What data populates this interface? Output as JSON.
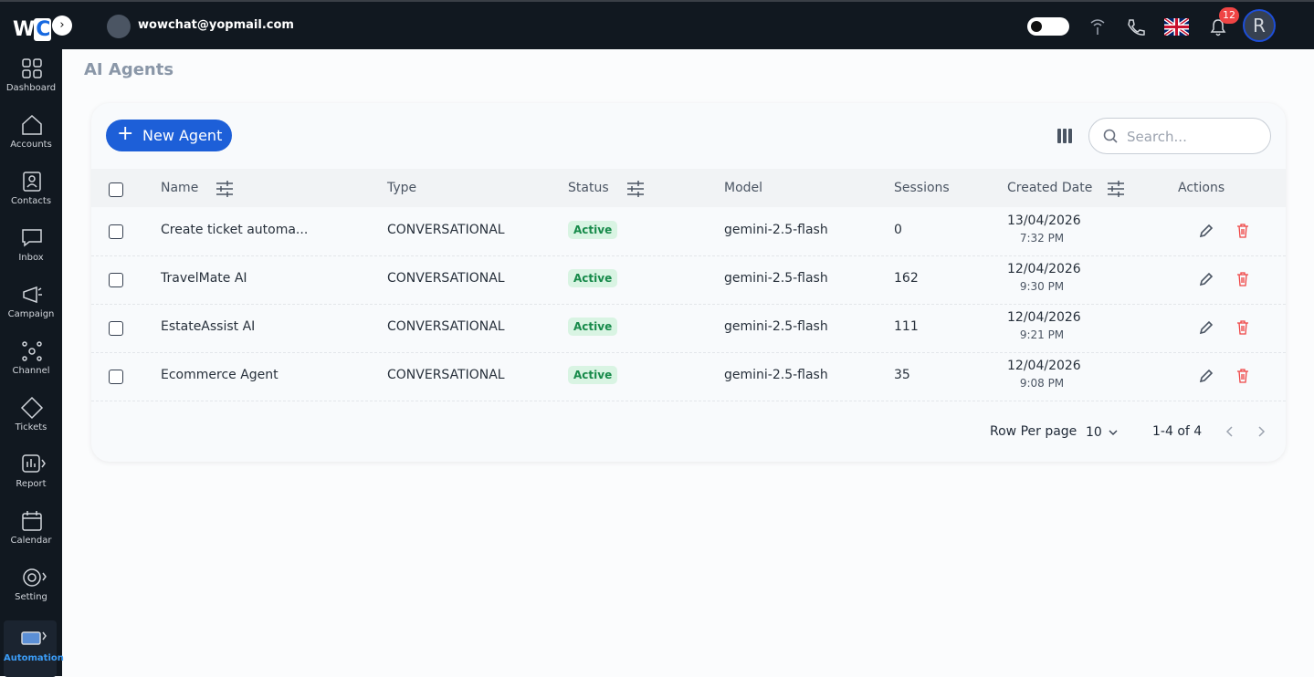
{
  "header": {
    "logo_letters": [
      "W",
      "C"
    ],
    "email": "wowchat@yopmail.com",
    "notification_count": "12",
    "avatar_initial": "R"
  },
  "sidebar": [
    "Dashboard",
    "Accounts",
    "Contacts",
    "Inbox",
    "Campaign",
    "Channel",
    "Tickets",
    "Report",
    "Calendar",
    "Setting",
    "Automation"
  ],
  "page": {
    "title": "AI Agents",
    "new_button": "New Agent",
    "search_placeholder": "Search..."
  },
  "table": {
    "columns": [
      "Name",
      "Type",
      "Status",
      "Model",
      "Sessions",
      "Created Date",
      "Actions"
    ],
    "rows": [
      [
        "Create ticket automa...",
        "CONVERSATIONAL",
        "Active",
        "gemini-2.5-flash",
        0,
        "13/04/2026",
        "7:32 PM"
      ],
      [
        "TravelMate AI",
        "CONVERSATIONAL",
        "Active",
        "gemini-2.5-flash",
        162,
        "12/04/2026",
        "9:30 PM"
      ],
      [
        "EstateAssist AI",
        "CONVERSATIONAL",
        "Active",
        "gemini-2.5-flash",
        111,
        "12/04/2026",
        "9:21 PM"
      ],
      [
        "Ecommerce Agent",
        "CONVERSATIONAL",
        "Active",
        "gemini-2.5-flash",
        35,
        "12/04/2026",
        "9:08 PM"
      ]
    ]
  },
  "pagination": {
    "rows_per_page_label": "Row Per page",
    "rows_per_page": "10",
    "range": "1-4 of 4"
  }
}
